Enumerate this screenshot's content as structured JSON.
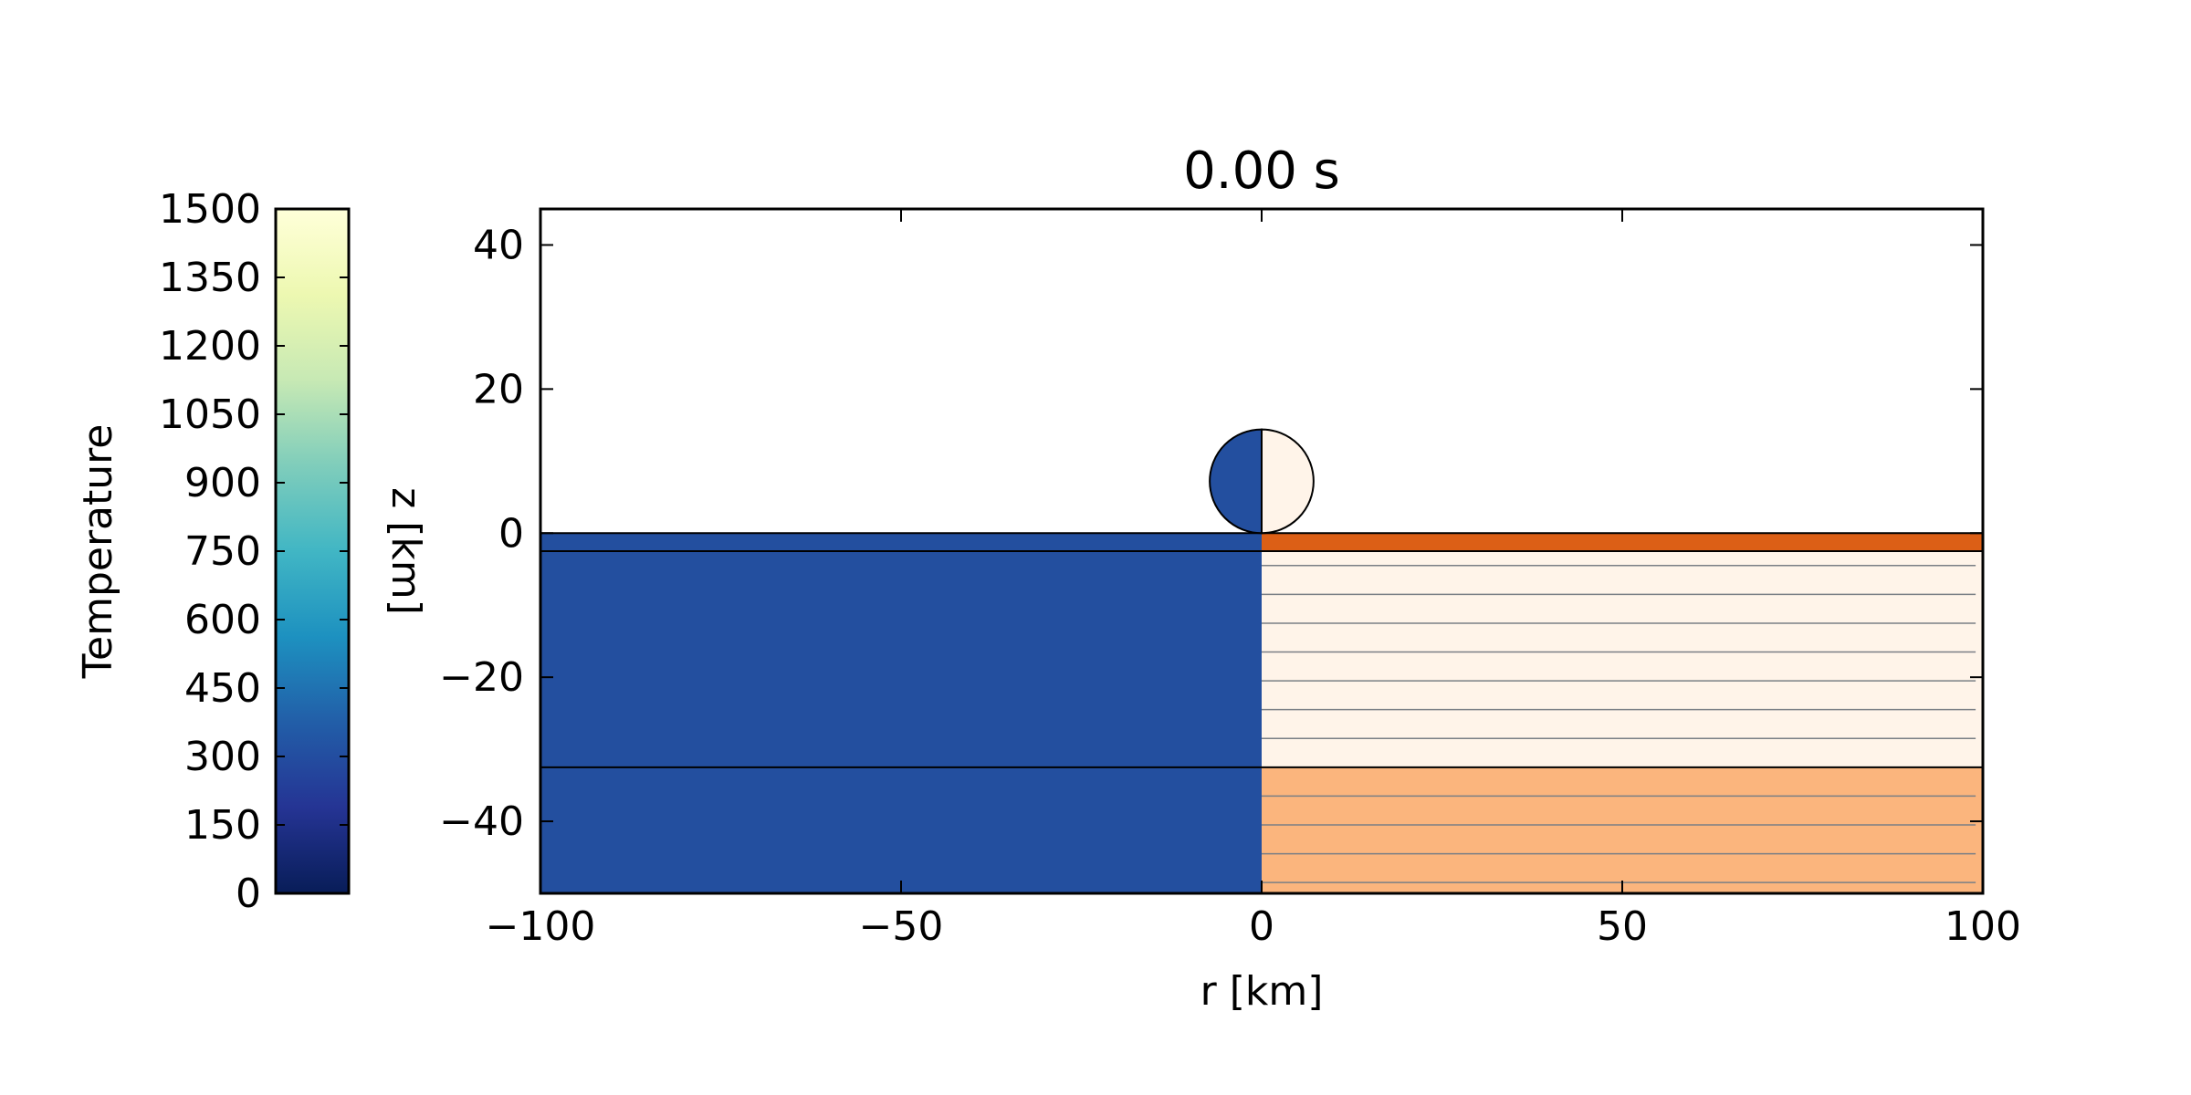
{
  "chart_data": {
    "type": "heatmap",
    "title": "0.00 s",
    "xlabel": "r [km]",
    "ylabel": "z [km]",
    "xlim": [
      -100,
      100
    ],
    "ylim": [
      -50,
      45
    ],
    "xticks": [
      -100,
      -50,
      0,
      50,
      100
    ],
    "yticks": [
      40,
      20,
      0,
      -20,
      -40
    ],
    "grid": false,
    "panels": {
      "left": "temperature",
      "right": "material"
    },
    "colorbar": {
      "label": "Temperature",
      "position": "left",
      "range": [
        0,
        1500
      ],
      "ticks": [
        1500,
        1350,
        1200,
        1050,
        900,
        750,
        600,
        450,
        300,
        150,
        0
      ],
      "colormap_stops": [
        {
          "value": 0,
          "color": "#081d58"
        },
        {
          "value": 187.5,
          "color": "#253494"
        },
        {
          "value": 375,
          "color": "#225ea8"
        },
        {
          "value": 562.5,
          "color": "#1d91c0"
        },
        {
          "value": 750,
          "color": "#41b6c4"
        },
        {
          "value": 937.5,
          "color": "#7fcdbb"
        },
        {
          "value": 1125,
          "color": "#c7e9b4"
        },
        {
          "value": 1312.5,
          "color": "#edf8b1"
        },
        {
          "value": 1500,
          "color": "#ffffd9"
        }
      ]
    },
    "temperature_field": {
      "value": 293,
      "color": "#234f9f"
    },
    "layers": [
      {
        "z_top": 0,
        "z_bottom": -2.5,
        "color": "#dc5f16"
      },
      {
        "z_top": -2.5,
        "z_bottom": -32.5,
        "color": "#fff4e9"
      },
      {
        "z_top": -32.5,
        "z_bottom": -50,
        "color": "#fbb57d"
      }
    ],
    "layer_boundaries": [
      0,
      -2.5,
      -32.5
    ],
    "mesh_lines_z": [
      -4.5,
      -8.5,
      -12.5,
      -16.5,
      -20.5,
      -24.5,
      -28.5,
      -32.5,
      -36.5,
      -40.5,
      -44.5,
      -48.5
    ],
    "impactor": {
      "center_r": 0,
      "center_z": 7.2,
      "radius": 7.2,
      "left_color": "#234f9f",
      "right_color": "#fff4e9"
    }
  }
}
